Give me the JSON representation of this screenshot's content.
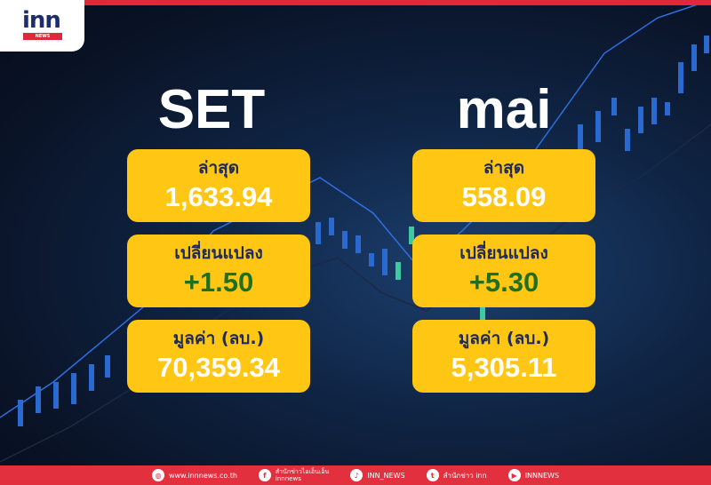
{
  "brand": {
    "logo_text": "inn",
    "logo_sub": "NEWS",
    "accent": "#e0283c",
    "card_color": "#ffc614"
  },
  "set": {
    "title": "SET",
    "latest_label": "ล่าสุด",
    "latest": "1,633.94",
    "change_label": "เปลี่ยนแปลง",
    "change": "+1.50",
    "value_label": "มูลค่า (ลบ.)",
    "value": "70,359.34"
  },
  "mai": {
    "title": "mai",
    "latest_label": "ล่าสุด",
    "latest": "558.09",
    "change_label": "เปลี่ยนแปลง",
    "change": "+5.30",
    "value_label": "มูลค่า (ลบ.)",
    "value": "5,305.11"
  },
  "footer": {
    "website": "www.innnews.co.th",
    "facebook_line1": "สำนักข่าวไอเอ็นเอ็น",
    "facebook_line2": "innnews",
    "tiktok": "INN_NEWS",
    "twitter": "สำนักข่าว inn",
    "youtube": "INNNEWS"
  }
}
